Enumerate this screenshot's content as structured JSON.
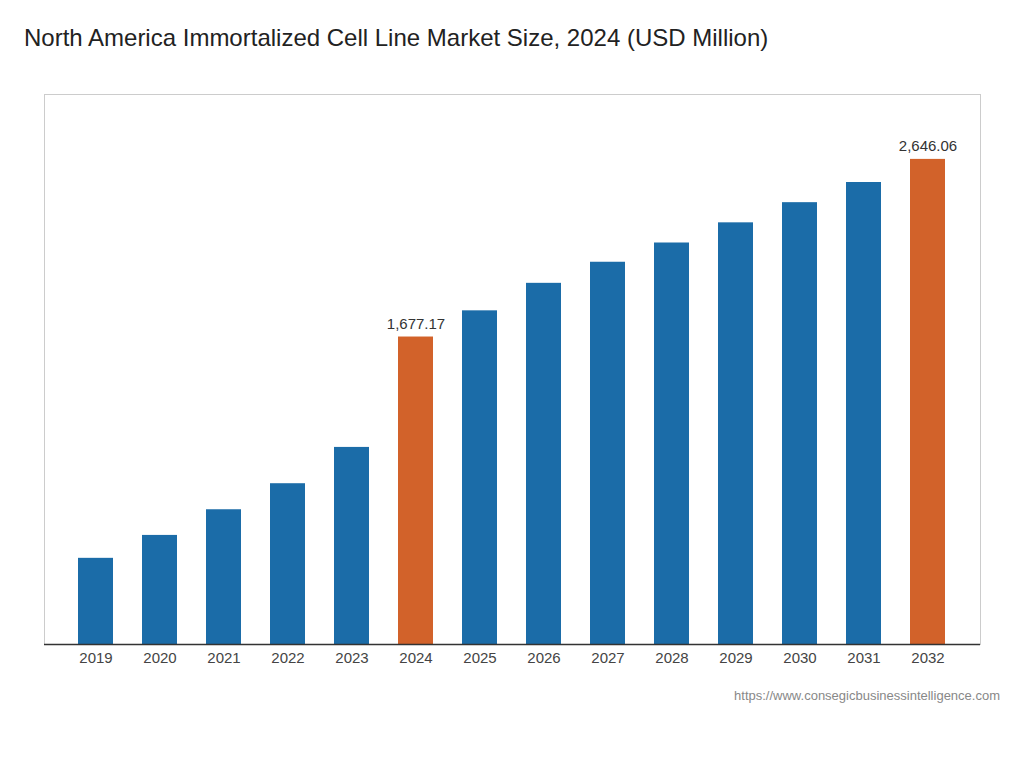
{
  "chart_data": {
    "type": "bar",
    "title": "North America Immortalized Cell Line Market Size, 2024 (USD Million)",
    "caption": "https://www.consegicbusinessintelligence.com",
    "categories": [
      "2019",
      "2020",
      "2021",
      "2022",
      "2023",
      "2024",
      "2025",
      "2026",
      "2027",
      "2028",
      "2029",
      "2030",
      "2031",
      "2032"
    ],
    "values": [
      470,
      595,
      735,
      877,
      1075,
      1677.17,
      1820,
      1970,
      2085,
      2190,
      2300,
      2410,
      2520,
      2646.06
    ],
    "value_labels": [
      null,
      null,
      null,
      null,
      null,
      "1,677.17",
      null,
      null,
      null,
      null,
      null,
      null,
      null,
      "2,646.06"
    ],
    "colors": [
      "#1b6ca8",
      "#1b6ca8",
      "#1b6ca8",
      "#1b6ca8",
      "#1b6ca8",
      "#d2622a",
      "#1b6ca8",
      "#1b6ca8",
      "#1b6ca8",
      "#1b6ca8",
      "#1b6ca8",
      "#1b6ca8",
      "#1b6ca8",
      "#d2622a"
    ],
    "ylim": [
      0,
      3000
    ],
    "tick_labels": "x",
    "grid": false
  }
}
